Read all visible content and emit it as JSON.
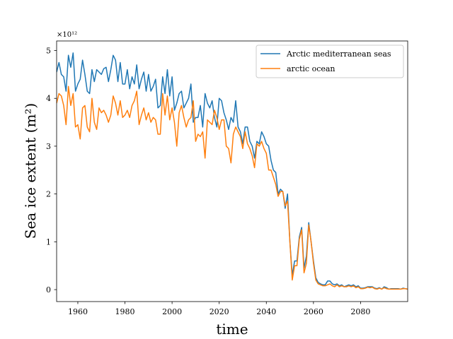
{
  "chart_data": {
    "type": "line",
    "xlabel": "time",
    "ylabel": "Sea ice extent (m²)",
    "y_multiplier_label": "×10¹²",
    "xlim": [
      1951,
      2100
    ],
    "ylim": [
      -0.25,
      5.2
    ],
    "x_ticks": [
      1960,
      1980,
      2000,
      2020,
      2040,
      2060,
      2080
    ],
    "y_ticks": [
      0,
      1,
      2,
      3,
      4,
      5
    ],
    "legend_position": "top-right",
    "grid": false,
    "x": [
      1951,
      1952,
      1953,
      1954,
      1955,
      1956,
      1957,
      1958,
      1959,
      1960,
      1961,
      1962,
      1963,
      1964,
      1965,
      1966,
      1967,
      1968,
      1969,
      1970,
      1971,
      1972,
      1973,
      1974,
      1975,
      1976,
      1977,
      1978,
      1979,
      1980,
      1981,
      1982,
      1983,
      1984,
      1985,
      1986,
      1987,
      1988,
      1989,
      1990,
      1991,
      1992,
      1993,
      1994,
      1995,
      1996,
      1997,
      1998,
      1999,
      2000,
      2001,
      2002,
      2003,
      2004,
      2005,
      2006,
      2007,
      2008,
      2009,
      2010,
      2011,
      2012,
      2013,
      2014,
      2015,
      2016,
      2017,
      2018,
      2019,
      2020,
      2021,
      2022,
      2023,
      2024,
      2025,
      2026,
      2027,
      2028,
      2029,
      2030,
      2031,
      2032,
      2033,
      2034,
      2035,
      2036,
      2037,
      2038,
      2039,
      2040,
      2041,
      2042,
      2043,
      2044,
      2045,
      2046,
      2047,
      2048,
      2049,
      2050,
      2051,
      2052,
      2053,
      2054,
      2055,
      2056,
      2057,
      2058,
      2059,
      2060,
      2061,
      2062,
      2063,
      2064,
      2065,
      2066,
      2067,
      2068,
      2069,
      2070,
      2071,
      2072,
      2073,
      2074,
      2075,
      2076,
      2077,
      2078,
      2079,
      2080,
      2081,
      2082,
      2083,
      2084,
      2085,
      2086,
      2087,
      2088,
      2089,
      2090,
      2091,
      2092,
      2093,
      2094,
      2095,
      2096,
      2097,
      2098,
      2099,
      2100
    ],
    "series": [
      {
        "name": "Arctic mediterranean seas",
        "color": "#1f77b4",
        "values": [
          4.55,
          4.75,
          4.5,
          4.45,
          4.15,
          4.9,
          4.65,
          4.95,
          4.15,
          4.3,
          4.4,
          4.8,
          4.5,
          4.15,
          4.1,
          4.6,
          4.35,
          4.6,
          4.55,
          4.5,
          4.62,
          4.65,
          4.35,
          4.6,
          4.9,
          4.8,
          4.35,
          4.75,
          4.3,
          4.3,
          4.6,
          4.2,
          4.45,
          4.3,
          4.7,
          4.2,
          4.4,
          4.55,
          4.15,
          4.5,
          4.15,
          4.25,
          4.4,
          3.8,
          3.85,
          4.45,
          4.1,
          4.6,
          4.05,
          4.45,
          3.75,
          3.9,
          4.1,
          4.15,
          3.8,
          3.9,
          4.0,
          4.3,
          3.5,
          3.6,
          3.6,
          3.85,
          3.4,
          4.1,
          3.9,
          3.8,
          3.95,
          3.6,
          3.4,
          4.0,
          3.95,
          3.7,
          3.55,
          3.35,
          3.6,
          3.5,
          3.95,
          3.4,
          3.3,
          3.05,
          3.4,
          3.4,
          3.1,
          3.0,
          2.75,
          3.1,
          3.05,
          3.3,
          3.2,
          3.05,
          3.0,
          2.7,
          2.5,
          2.45,
          2.0,
          2.1,
          2.05,
          1.7,
          2.0,
          1.0,
          0.3,
          0.6,
          0.6,
          1.1,
          1.3,
          0.45,
          0.7,
          1.4,
          1.0,
          0.6,
          0.25,
          0.15,
          0.12,
          0.1,
          0.1,
          0.18,
          0.18,
          0.12,
          0.1,
          0.12,
          0.08,
          0.1,
          0.06,
          0.08,
          0.1,
          0.08,
          0.1,
          0.06,
          0.08,
          0.03,
          0.03,
          0.04,
          0.06,
          0.06,
          0.06,
          0.03,
          0.02,
          0.04,
          0.01,
          0.06,
          0.04,
          0.01,
          0.02,
          0.02,
          0.02,
          0.02,
          0.01,
          0.03,
          0.02,
          0.01
        ]
      },
      {
        "name": "arctic ocean",
        "color": "#ff7f0e",
        "values": [
          3.9,
          4.1,
          4.05,
          3.85,
          3.45,
          4.25,
          3.85,
          4.1,
          3.4,
          3.45,
          3.15,
          3.8,
          3.85,
          3.4,
          3.3,
          4.0,
          3.5,
          3.35,
          3.8,
          3.7,
          3.75,
          3.65,
          3.5,
          3.65,
          4.05,
          3.9,
          3.65,
          3.95,
          3.6,
          3.65,
          3.75,
          3.6,
          3.85,
          3.95,
          4.15,
          3.45,
          3.65,
          3.8,
          3.55,
          3.7,
          3.5,
          3.6,
          3.55,
          3.25,
          3.25,
          4.1,
          3.65,
          4.05,
          3.55,
          3.8,
          3.5,
          3.0,
          3.7,
          3.85,
          3.6,
          3.4,
          3.55,
          3.6,
          3.95,
          3.1,
          3.25,
          3.2,
          3.3,
          2.75,
          3.55,
          3.5,
          3.45,
          3.75,
          3.6,
          3.35,
          3.55,
          3.55,
          3.0,
          2.95,
          2.65,
          3.25,
          3.4,
          3.3,
          3.2,
          2.95,
          3.3,
          3.05,
          2.95,
          2.8,
          2.55,
          3.05,
          3.0,
          3.1,
          2.95,
          2.85,
          2.5,
          2.5,
          2.35,
          2.2,
          1.95,
          2.05,
          2.05,
          1.75,
          1.85,
          1.0,
          0.2,
          0.5,
          0.5,
          1.05,
          1.25,
          0.35,
          0.55,
          1.35,
          1.0,
          0.55,
          0.2,
          0.12,
          0.1,
          0.08,
          0.08,
          0.1,
          0.12,
          0.08,
          0.06,
          0.1,
          0.06,
          0.08,
          0.06,
          0.06,
          0.08,
          0.06,
          0.08,
          0.04,
          0.06,
          0.02,
          0.02,
          0.03,
          0.05,
          0.04,
          0.05,
          0.02,
          0.01,
          0.03,
          0.01,
          0.04,
          0.02,
          0.01,
          0.01,
          0.01,
          0.01,
          0.01,
          0.01,
          0.02,
          0.02,
          0.01
        ]
      }
    ]
  }
}
